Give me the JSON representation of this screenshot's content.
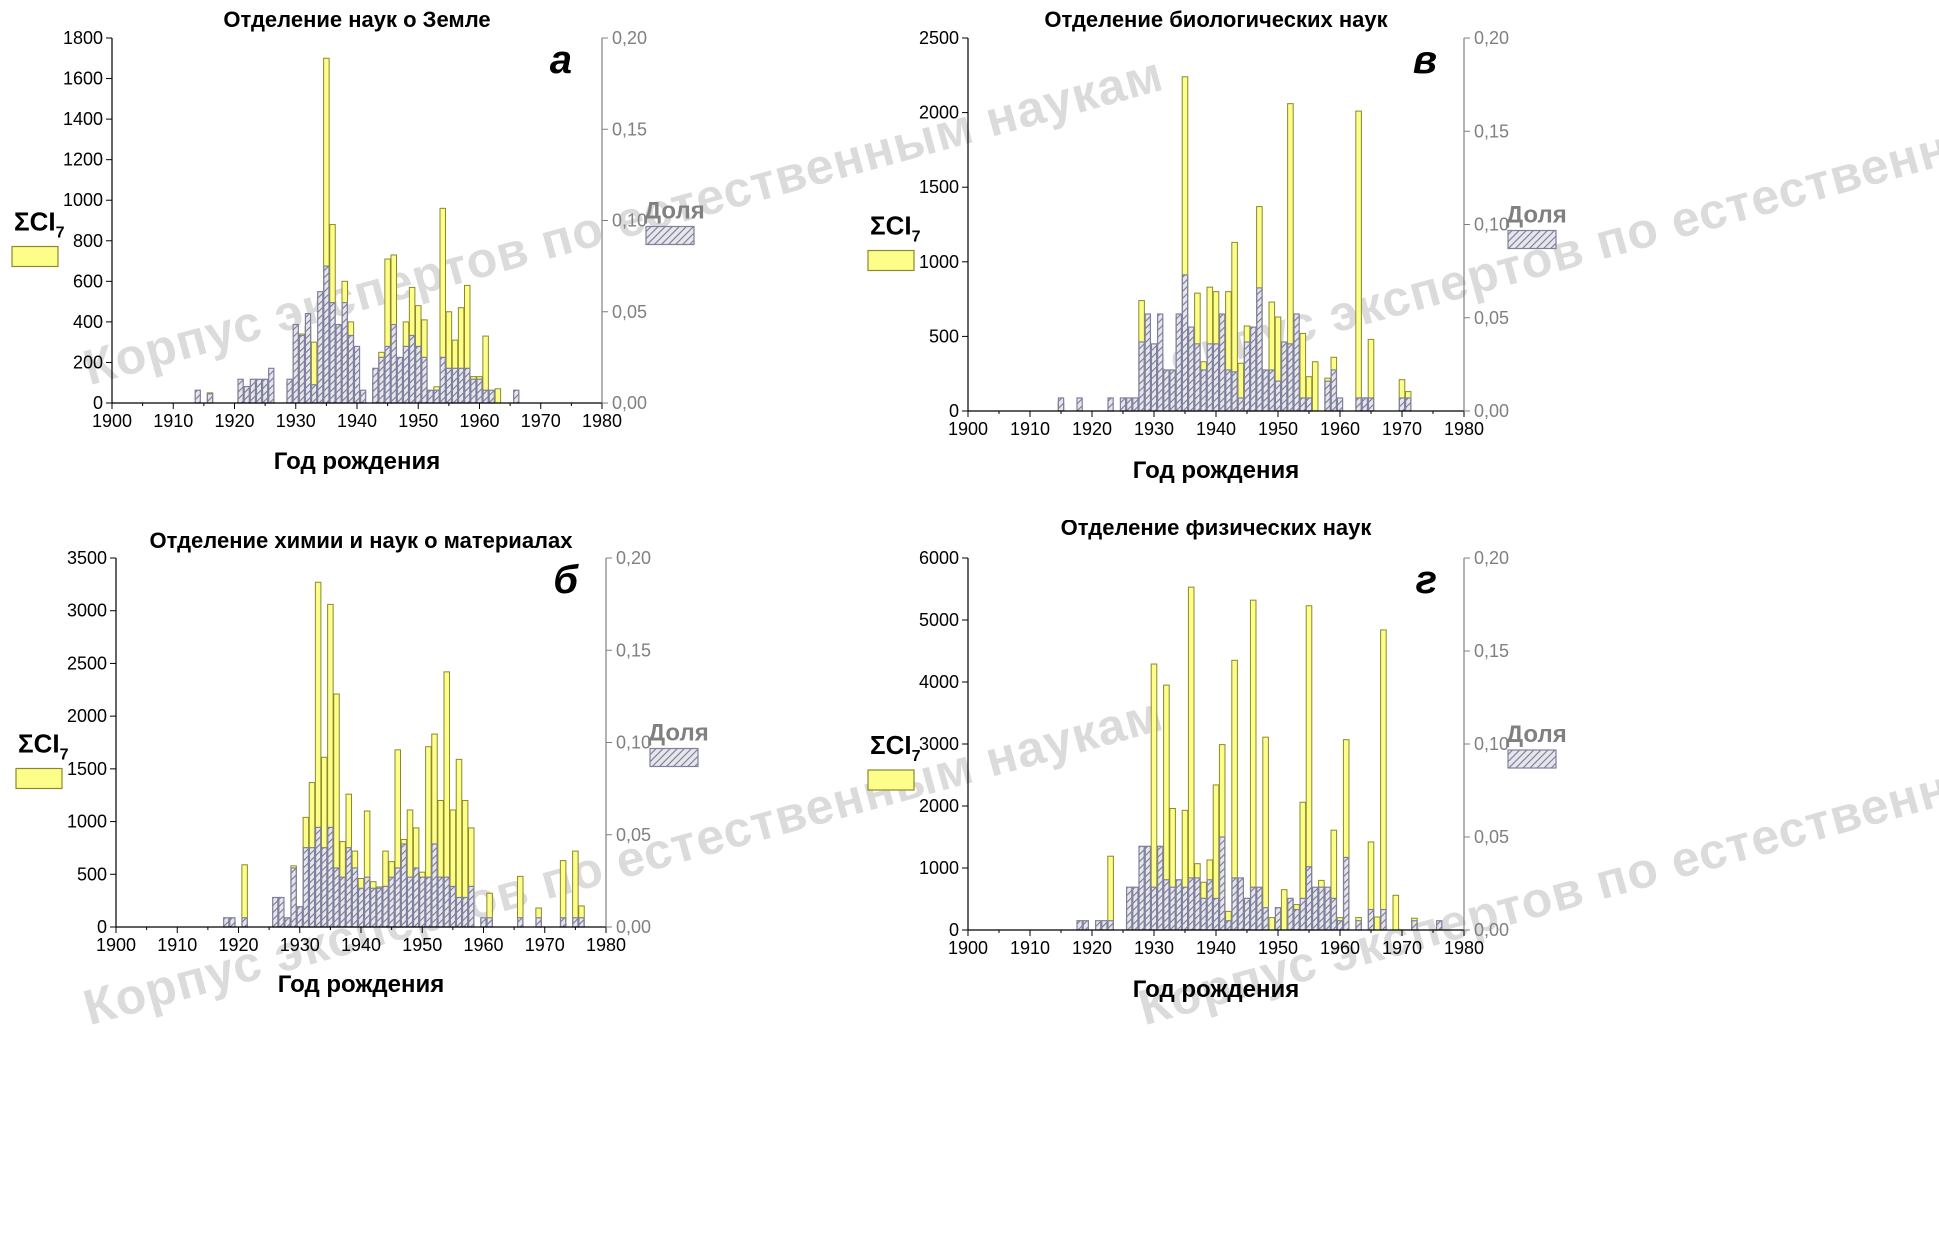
{
  "watermark": "Корпус экспертов по естественным наукам",
  "legend": {
    "sci_label": "ΣCI",
    "sci_sub": "7",
    "share_label": "Доля"
  },
  "colors": {
    "sci_fill": "#fdfd8a",
    "sci_stroke": "#8a8a2a",
    "share_stroke": "#7f7f9f",
    "share_hatch": "#7a7a8a",
    "axis": "#000000",
    "right_axis": "#808080"
  },
  "chart_data": [
    {
      "type": "bar",
      "letter": "а",
      "title": "Отделение наук о Земле",
      "xlabel": "Год рождения",
      "ylabel": "ΣCI7",
      "y2label": "Доля",
      "xlim": [
        1900,
        1980
      ],
      "xticks": [
        "1900",
        "1910",
        "1920",
        "1930",
        "1940",
        "1950",
        "1960",
        "1970",
        "1980"
      ],
      "ylim": [
        0,
        1800
      ],
      "yticks": [
        "0",
        "200",
        "400",
        "600",
        "800",
        "1000",
        "1200",
        "1400",
        "1600",
        "1800"
      ],
      "y2lim": [
        0,
        0.2
      ],
      "y2ticks": [
        "0,00",
        "0,05",
        "0,10",
        "0,15",
        "0,20"
      ],
      "series": [
        {
          "name": "ΣCI7",
          "x": [
            1916,
            1921,
            1924,
            1926,
            1929,
            1930,
            1931,
            1932,
            1933,
            1934,
            1935,
            1936,
            1937,
            1938,
            1939,
            1940,
            1943,
            1944,
            1945,
            1946,
            1947,
            1948,
            1949,
            1950,
            1951,
            1952,
            1953,
            1954,
            1955,
            1956,
            1957,
            1958,
            1959,
            1960,
            1961,
            1962,
            1963
          ],
          "values": [
            50,
            60,
            50,
            80,
            100,
            300,
            340,
            380,
            300,
            320,
            1700,
            880,
            380,
            600,
            400,
            60,
            100,
            250,
            710,
            730,
            200,
            400,
            570,
            480,
            410,
            50,
            80,
            960,
            450,
            310,
            470,
            580,
            130,
            130,
            330,
            60,
            70
          ]
        },
        {
          "name": "Доля",
          "x": [
            1914,
            1916,
            1921,
            1922,
            1923,
            1924,
            1925,
            1926,
            1929,
            1930,
            1931,
            1932,
            1933,
            1934,
            1935,
            1936,
            1937,
            1938,
            1939,
            1940,
            1941,
            1943,
            1944,
            1945,
            1946,
            1947,
            1948,
            1949,
            1950,
            1951,
            1952,
            1953,
            1954,
            1955,
            1956,
            1957,
            1958,
            1959,
            1960,
            1961,
            1962,
            1966
          ],
          "values": [
            0.007,
            0.005,
            0.013,
            0.009,
            0.013,
            0.013,
            0.013,
            0.019,
            0.013,
            0.043,
            0.037,
            0.049,
            0.01,
            0.061,
            0.075,
            0.055,
            0.043,
            0.055,
            0.037,
            0.031,
            0.007,
            0.019,
            0.025,
            0.031,
            0.043,
            0.025,
            0.031,
            0.037,
            0.031,
            0.025,
            0.007,
            0.007,
            0.025,
            0.019,
            0.019,
            0.019,
            0.019,
            0.013,
            0.013,
            0.007,
            0.007,
            0.007
          ]
        }
      ]
    },
    {
      "type": "bar",
      "letter": "б",
      "title": "Отделение химии и наук о материалах",
      "xlabel": "Год рождения",
      "ylabel": "ΣCI7",
      "y2label": "Доля",
      "xlim": [
        1900,
        1980
      ],
      "xticks": [
        "1900",
        "1910",
        "1920",
        "1930",
        "1940",
        "1950",
        "1960",
        "1970",
        "1980"
      ],
      "ylim": [
        0,
        3500
      ],
      "yticks": [
        "0",
        "500",
        "1000",
        "1500",
        "2000",
        "2500",
        "3000",
        "3500"
      ],
      "y2lim": [
        0,
        0.2
      ],
      "y2ticks": [
        "0,00",
        "0,05",
        "0,10",
        "0,15",
        "0,20"
      ],
      "series": [
        {
          "name": "ΣCI7",
          "x": [
            1919,
            1921,
            1926,
            1928,
            1929,
            1931,
            1932,
            1933,
            1934,
            1935,
            1936,
            1937,
            1938,
            1939,
            1940,
            1941,
            1942,
            1943,
            1944,
            1945,
            1946,
            1947,
            1948,
            1949,
            1950,
            1951,
            1952,
            1953,
            1954,
            1955,
            1956,
            1957,
            1958,
            1960,
            1961,
            1966,
            1969,
            1973,
            1975,
            1976
          ],
          "values": [
            50,
            590,
            50,
            50,
            580,
            1040,
            1370,
            3270,
            1610,
            3060,
            2210,
            810,
            1260,
            720,
            460,
            1100,
            430,
            380,
            720,
            620,
            1680,
            830,
            1110,
            940,
            520,
            1710,
            1830,
            1200,
            2420,
            1110,
            1590,
            1200,
            940,
            80,
            320,
            480,
            180,
            630,
            720,
            200
          ]
        },
        {
          "name": "Доля",
          "x": [
            1918,
            1919,
            1921,
            1926,
            1927,
            1928,
            1929,
            1930,
            1931,
            1932,
            1933,
            1934,
            1935,
            1936,
            1937,
            1938,
            1939,
            1940,
            1941,
            1942,
            1943,
            1944,
            1945,
            1946,
            1947,
            1948,
            1949,
            1950,
            1951,
            1952,
            1953,
            1954,
            1955,
            1956,
            1957,
            1958,
            1960,
            1961,
            1966,
            1969,
            1973,
            1975,
            1976
          ],
          "values": [
            0.005,
            0.005,
            0.005,
            0.016,
            0.016,
            0.005,
            0.032,
            0.011,
            0.043,
            0.043,
            0.054,
            0.043,
            0.054,
            0.032,
            0.027,
            0.043,
            0.032,
            0.021,
            0.027,
            0.021,
            0.021,
            0.022,
            0.027,
            0.032,
            0.045,
            0.027,
            0.032,
            0.027,
            0.027,
            0.045,
            0.027,
            0.027,
            0.022,
            0.016,
            0.016,
            0.022,
            0.005,
            0.005,
            0.005,
            0.005,
            0.005,
            0.005,
            0.005
          ]
        }
      ]
    },
    {
      "type": "bar",
      "letter": "в",
      "title": "Отделение биологических наук",
      "xlabel": "Год рождения",
      "ylabel": "ΣCI7",
      "y2label": "Доля",
      "xlim": [
        1900,
        1980
      ],
      "xticks": [
        "1900",
        "1910",
        "1920",
        "1930",
        "1940",
        "1950",
        "1960",
        "1970",
        "1980"
      ],
      "ylim": [
        0,
        2500
      ],
      "yticks": [
        "0",
        "500",
        "1000",
        "1500",
        "2000",
        "2500"
      ],
      "y2lim": [
        0,
        0.2
      ],
      "y2ticks": [
        "0,00",
        "0,05",
        "0,10",
        "0,15",
        "0,20"
      ],
      "series": [
        {
          "name": "ΣCI7",
          "x": [
            1915,
            1928,
            1929,
            1930,
            1931,
            1932,
            1934,
            1935,
            1936,
            1937,
            1938,
            1939,
            1940,
            1941,
            1942,
            1943,
            1944,
            1945,
            1946,
            1947,
            1948,
            1949,
            1950,
            1951,
            1952,
            1953,
            1954,
            1955,
            1956,
            1958,
            1959,
            1963,
            1965,
            1970,
            1971
          ],
          "values": [
            60,
            740,
            470,
            330,
            380,
            250,
            630,
            2240,
            540,
            790,
            330,
            830,
            800,
            490,
            800,
            1130,
            320,
            570,
            390,
            1370,
            250,
            730,
            630,
            360,
            2060,
            340,
            520,
            230,
            330,
            220,
            360,
            2010,
            480,
            210,
            130
          ]
        },
        {
          "name": "Доля",
          "x": [
            1915,
            1918,
            1923,
            1925,
            1926,
            1927,
            1928,
            1929,
            1930,
            1931,
            1932,
            1933,
            1934,
            1935,
            1936,
            1937,
            1938,
            1939,
            1940,
            1941,
            1942,
            1943,
            1944,
            1945,
            1946,
            1947,
            1948,
            1949,
            1950,
            1951,
            1952,
            1953,
            1954,
            1955,
            1958,
            1959,
            1960,
            1963,
            1964,
            1965,
            1970,
            1971
          ],
          "values": [
            0.007,
            0.007,
            0.007,
            0.007,
            0.007,
            0.007,
            0.037,
            0.052,
            0.036,
            0.052,
            0.022,
            0.022,
            0.052,
            0.073,
            0.045,
            0.036,
            0.022,
            0.036,
            0.036,
            0.052,
            0.022,
            0.021,
            0.007,
            0.037,
            0.045,
            0.066,
            0.022,
            0.022,
            0.016,
            0.037,
            0.036,
            0.052,
            0.007,
            0.007,
            0.016,
            0.022,
            0.007,
            0.007,
            0.007,
            0.007,
            0.007,
            0.007
          ]
        }
      ]
    },
    {
      "type": "bar",
      "letter": "г",
      "title": "Отделение физических наук",
      "xlabel": "Год рождения",
      "ylabel": "ΣCI7",
      "y2label": "Доля",
      "xlim": [
        1900,
        1980
      ],
      "xticks": [
        "1900",
        "1910",
        "1920",
        "1930",
        "1940",
        "1950",
        "1960",
        "1970",
        "1980"
      ],
      "ylim": [
        0,
        6000
      ],
      "yticks": [
        "0",
        "1000",
        "2000",
        "3000",
        "4000",
        "5000",
        "6000"
      ],
      "y2lim": [
        0,
        0.2
      ],
      "y2ticks": [
        "0,00",
        "0,05",
        "0,10",
        "0,15",
        "0,20"
      ],
      "series": [
        {
          "name": "ΣCI7",
          "x": [
            1922,
            1923,
            1926,
            1928,
            1929,
            1930,
            1931,
            1932,
            1933,
            1934,
            1935,
            1936,
            1937,
            1938,
            1939,
            1940,
            1941,
            1942,
            1943,
            1944,
            1945,
            1946,
            1947,
            1948,
            1949,
            1951,
            1952,
            1953,
            1954,
            1955,
            1956,
            1957,
            1958,
            1959,
            1960,
            1961,
            1963,
            1965,
            1966,
            1967,
            1969,
            1972
          ],
          "values": [
            90,
            1190,
            190,
            190,
            590,
            4290,
            1330,
            3950,
            1960,
            590,
            1930,
            5530,
            1070,
            770,
            1130,
            2340,
            2990,
            300,
            4350,
            290,
            510,
            5320,
            630,
            3110,
            200,
            650,
            490,
            410,
            2060,
            5230,
            640,
            800,
            620,
            1610,
            200,
            3070,
            200,
            1420,
            210,
            4840,
            560,
            190
          ]
        },
        {
          "name": "Доля",
          "x": [
            1918,
            1919,
            1921,
            1922,
            1923,
            1926,
            1927,
            1928,
            1929,
            1930,
            1931,
            1932,
            1933,
            1934,
            1935,
            1936,
            1937,
            1938,
            1939,
            1940,
            1941,
            1942,
            1943,
            1944,
            1945,
            1946,
            1947,
            1948,
            1950,
            1952,
            1953,
            1954,
            1955,
            1956,
            1957,
            1958,
            1959,
            1960,
            1961,
            1963,
            1965,
            1967,
            1972,
            1976
          ],
          "values": [
            0.005,
            0.005,
            0.005,
            0.005,
            0.005,
            0.023,
            0.023,
            0.045,
            0.045,
            0.023,
            0.045,
            0.027,
            0.023,
            0.027,
            0.023,
            0.028,
            0.028,
            0.017,
            0.027,
            0.017,
            0.05,
            0.005,
            0.028,
            0.028,
            0.017,
            0.023,
            0.023,
            0.012,
            0.012,
            0.017,
            0.011,
            0.017,
            0.034,
            0.023,
            0.023,
            0.023,
            0.017,
            0.005,
            0.039,
            0.005,
            0.011,
            0.011,
            0.005,
            0.005
          ]
        }
      ]
    }
  ]
}
